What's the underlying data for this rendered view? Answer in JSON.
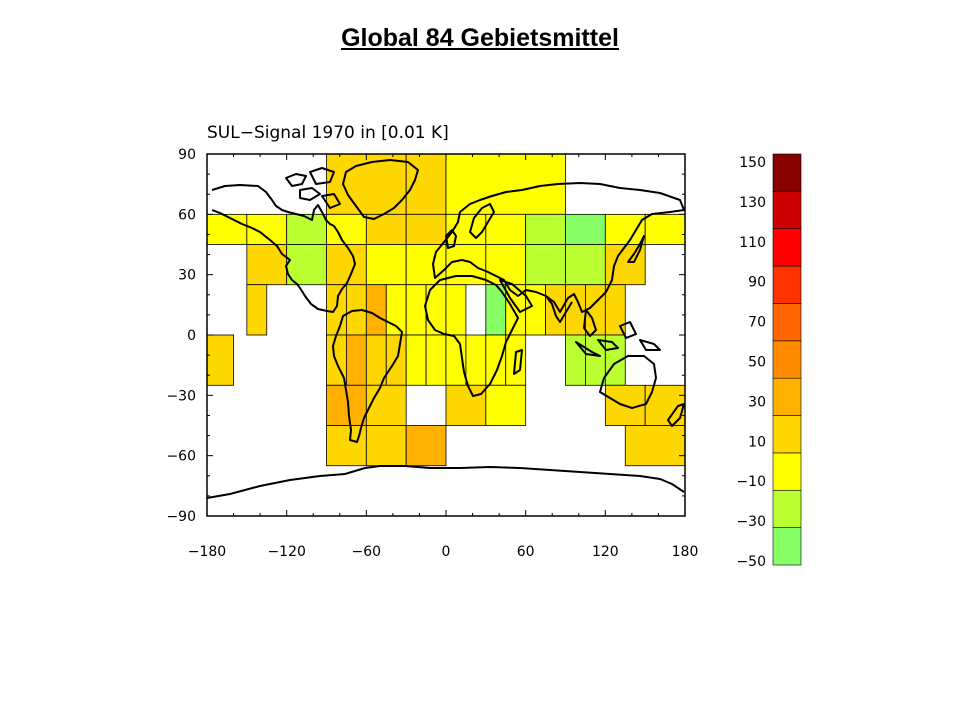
{
  "slide": {
    "title": "Global 84 Gebietsmittel"
  },
  "chart_data": {
    "type": "heatmap",
    "title": "SUL−Signal 1970 in [0.01 K]",
    "units": "0.01 K",
    "grid": false,
    "x_ticks": [
      -180,
      -120,
      -60,
      0,
      60,
      120,
      180
    ],
    "x_tick_labels": [
      "−180",
      "−120",
      "−60",
      "0",
      "60",
      "120",
      "180"
    ],
    "y_ticks": [
      90,
      60,
      30,
      0,
      -30,
      -60,
      -90
    ],
    "y_tick_labels": [
      "90",
      "60",
      "30",
      "0",
      "−30",
      "−60",
      "−90"
    ],
    "xlim": [
      -180,
      180
    ],
    "ylim": [
      -90,
      90
    ],
    "colorbar": {
      "tick_labels": [
        "150",
        "130",
        "110",
        "90",
        "70",
        "50",
        "30",
        "10",
        "−10",
        "−30",
        "−50"
      ],
      "bins": [
        {
          "min": -60,
          "max": -40,
          "color": "#88ff66"
        },
        {
          "min": -40,
          "max": -20,
          "color": "#bbff33"
        },
        {
          "min": -20,
          "max": 0,
          "color": "#ffff00"
        },
        {
          "min": 0,
          "max": 20,
          "color": "#ffd700"
        },
        {
          "min": 20,
          "max": 40,
          "color": "#ffb000"
        },
        {
          "min": 40,
          "max": 60,
          "color": "#ff8c00"
        },
        {
          "min": 60,
          "max": 80,
          "color": "#ff6600"
        },
        {
          "min": 80,
          "max": 100,
          "color": "#ff3300"
        },
        {
          "min": 100,
          "max": 120,
          "color": "#ff0000"
        },
        {
          "min": 120,
          "max": 140,
          "color": "#cc0000"
        },
        {
          "min": 140,
          "max": 160,
          "color": "#880000"
        }
      ]
    },
    "cells": [
      {
        "lon": [
          -90,
          -30
        ],
        "lat": [
          60,
          90
        ],
        "value": 10
      },
      {
        "lon": [
          -30,
          0
        ],
        "lat": [
          60,
          90
        ],
        "value": 10
      },
      {
        "lon": [
          0,
          90
        ],
        "lat": [
          60,
          90
        ],
        "value": -10
      },
      {
        "lon": [
          -180,
          -150
        ],
        "lat": [
          45,
          60
        ],
        "value": -10
      },
      {
        "lon": [
          -150,
          -120
        ],
        "lat": [
          45,
          60
        ],
        "value": -10
      },
      {
        "lon": [
          -120,
          -90
        ],
        "lat": [
          45,
          60
        ],
        "value": -30
      },
      {
        "lon": [
          -90,
          -60
        ],
        "lat": [
          45,
          60
        ],
        "value": -10
      },
      {
        "lon": [
          -60,
          -30
        ],
        "lat": [
          45,
          60
        ],
        "value": 10
      },
      {
        "lon": [
          -30,
          0
        ],
        "lat": [
          45,
          60
        ],
        "value": 10
      },
      {
        "lon": [
          0,
          30
        ],
        "lat": [
          45,
          60
        ],
        "value": -10
      },
      {
        "lon": [
          30,
          60
        ],
        "lat": [
          45,
          60
        ],
        "value": -10
      },
      {
        "lon": [
          60,
          90
        ],
        "lat": [
          45,
          60
        ],
        "value": -30
      },
      {
        "lon": [
          90,
          120
        ],
        "lat": [
          45,
          60
        ],
        "value": -50
      },
      {
        "lon": [
          120,
          150
        ],
        "lat": [
          45,
          60
        ],
        "value": -10
      },
      {
        "lon": [
          150,
          180
        ],
        "lat": [
          45,
          60
        ],
        "value": -10
      },
      {
        "lon": [
          -150,
          -120
        ],
        "lat": [
          25,
          45
        ],
        "value": 10
      },
      {
        "lon": [
          -120,
          -90
        ],
        "lat": [
          25,
          45
        ],
        "value": -30
      },
      {
        "lon": [
          -90,
          -60
        ],
        "lat": [
          25,
          45
        ],
        "value": 10
      },
      {
        "lon": [
          -60,
          -30
        ],
        "lat": [
          25,
          45
        ],
        "value": -10
      },
      {
        "lon": [
          -30,
          0
        ],
        "lat": [
          25,
          45
        ],
        "value": -10
      },
      {
        "lon": [
          0,
          30
        ],
        "lat": [
          25,
          45
        ],
        "value": -10
      },
      {
        "lon": [
          30,
          60
        ],
        "lat": [
          25,
          45
        ],
        "value": -10
      },
      {
        "lon": [
          60,
          90
        ],
        "lat": [
          25,
          45
        ],
        "value": -30
      },
      {
        "lon": [
          90,
          120
        ],
        "lat": [
          25,
          45
        ],
        "value": -30
      },
      {
        "lon": [
          120,
          150
        ],
        "lat": [
          25,
          45
        ],
        "value": 10
      },
      {
        "lon": [
          -150,
          -135
        ],
        "lat": [
          0,
          25
        ],
        "value": 10
      },
      {
        "lon": [
          -90,
          -75
        ],
        "lat": [
          0,
          25
        ],
        "value": 10
      },
      {
        "lon": [
          -75,
          -60
        ],
        "lat": [
          0,
          25
        ],
        "value": 10
      },
      {
        "lon": [
          -60,
          -45
        ],
        "lat": [
          0,
          25
        ],
        "value": 30
      },
      {
        "lon": [
          -45,
          -30
        ],
        "lat": [
          0,
          25
        ],
        "value": -10
      },
      {
        "lon": [
          -30,
          -15
        ],
        "lat": [
          0,
          25
        ],
        "value": -10
      },
      {
        "lon": [
          -15,
          0
        ],
        "lat": [
          0,
          25
        ],
        "value": -10
      },
      {
        "lon": [
          0,
          15
        ],
        "lat": [
          0,
          25
        ],
        "value": -10
      },
      {
        "lon": [
          30,
          45
        ],
        "lat": [
          0,
          25
        ],
        "value": -50
      },
      {
        "lon": [
          45,
          60
        ],
        "lat": [
          0,
          25
        ],
        "value": -10
      },
      {
        "lon": [
          60,
          75
        ],
        "lat": [
          0,
          25
        ],
        "value": -10
      },
      {
        "lon": [
          75,
          90
        ],
        "lat": [
          0,
          25
        ],
        "value": 10
      },
      {
        "lon": [
          90,
          105
        ],
        "lat": [
          0,
          25
        ],
        "value": 10
      },
      {
        "lon": [
          105,
          120
        ],
        "lat": [
          0,
          25
        ],
        "value": 10
      },
      {
        "lon": [
          120,
          135
        ],
        "lat": [
          0,
          25
        ],
        "value": 10
      },
      {
        "lon": [
          -180,
          -160
        ],
        "lat": [
          -25,
          0
        ],
        "value": 10
      },
      {
        "lon": [
          -90,
          -75
        ],
        "lat": [
          -25,
          0
        ],
        "value": 10
      },
      {
        "lon": [
          -75,
          -60
        ],
        "lat": [
          -25,
          0
        ],
        "value": 30
      },
      {
        "lon": [
          -60,
          -45
        ],
        "lat": [
          -25,
          0
        ],
        "value": 10
      },
      {
        "lon": [
          -45,
          -30
        ],
        "lat": [
          -25,
          0
        ],
        "value": 10
      },
      {
        "lon": [
          -30,
          -15
        ],
        "lat": [
          -25,
          0
        ],
        "value": -10
      },
      {
        "lon": [
          -15,
          0
        ],
        "lat": [
          -25,
          0
        ],
        "value": -10
      },
      {
        "lon": [
          0,
          15
        ],
        "lat": [
          -25,
          0
        ],
        "value": -10
      },
      {
        "lon": [
          15,
          30
        ],
        "lat": [
          -25,
          0
        ],
        "value": -10
      },
      {
        "lon": [
          30,
          45
        ],
        "lat": [
          -25,
          0
        ],
        "value": -10
      },
      {
        "lon": [
          45,
          60
        ],
        "lat": [
          -25,
          0
        ],
        "value": -10
      },
      {
        "lon": [
          90,
          105
        ],
        "lat": [
          -25,
          0
        ],
        "value": -30
      },
      {
        "lon": [
          105,
          120
        ],
        "lat": [
          -25,
          0
        ],
        "value": -30
      },
      {
        "lon": [
          120,
          135
        ],
        "lat": [
          -25,
          0
        ],
        "value": -30
      },
      {
        "lon": [
          -90,
          -60
        ],
        "lat": [
          -45,
          -25
        ],
        "value": 30
      },
      {
        "lon": [
          -60,
          -30
        ],
        "lat": [
          -45,
          -25
        ],
        "value": 10
      },
      {
        "lon": [
          0,
          30
        ],
        "lat": [
          -45,
          -25
        ],
        "value": 10
      },
      {
        "lon": [
          30,
          60
        ],
        "lat": [
          -45,
          -25
        ],
        "value": -10
      },
      {
        "lon": [
          120,
          150
        ],
        "lat": [
          -45,
          -25
        ],
        "value": 10
      },
      {
        "lon": [
          150,
          180
        ],
        "lat": [
          -45,
          -25
        ],
        "value": 10
      },
      {
        "lon": [
          -90,
          -60
        ],
        "lat": [
          -65,
          -45
        ],
        "value": 10
      },
      {
        "lon": [
          -60,
          -30
        ],
        "lat": [
          -65,
          -45
        ],
        "value": 10
      },
      {
        "lon": [
          -30,
          0
        ],
        "lat": [
          -65,
          -45
        ],
        "value": 30
      },
      {
        "lon": [
          135,
          180
        ],
        "lat": [
          -65,
          -45
        ],
        "value": 10
      }
    ]
  }
}
